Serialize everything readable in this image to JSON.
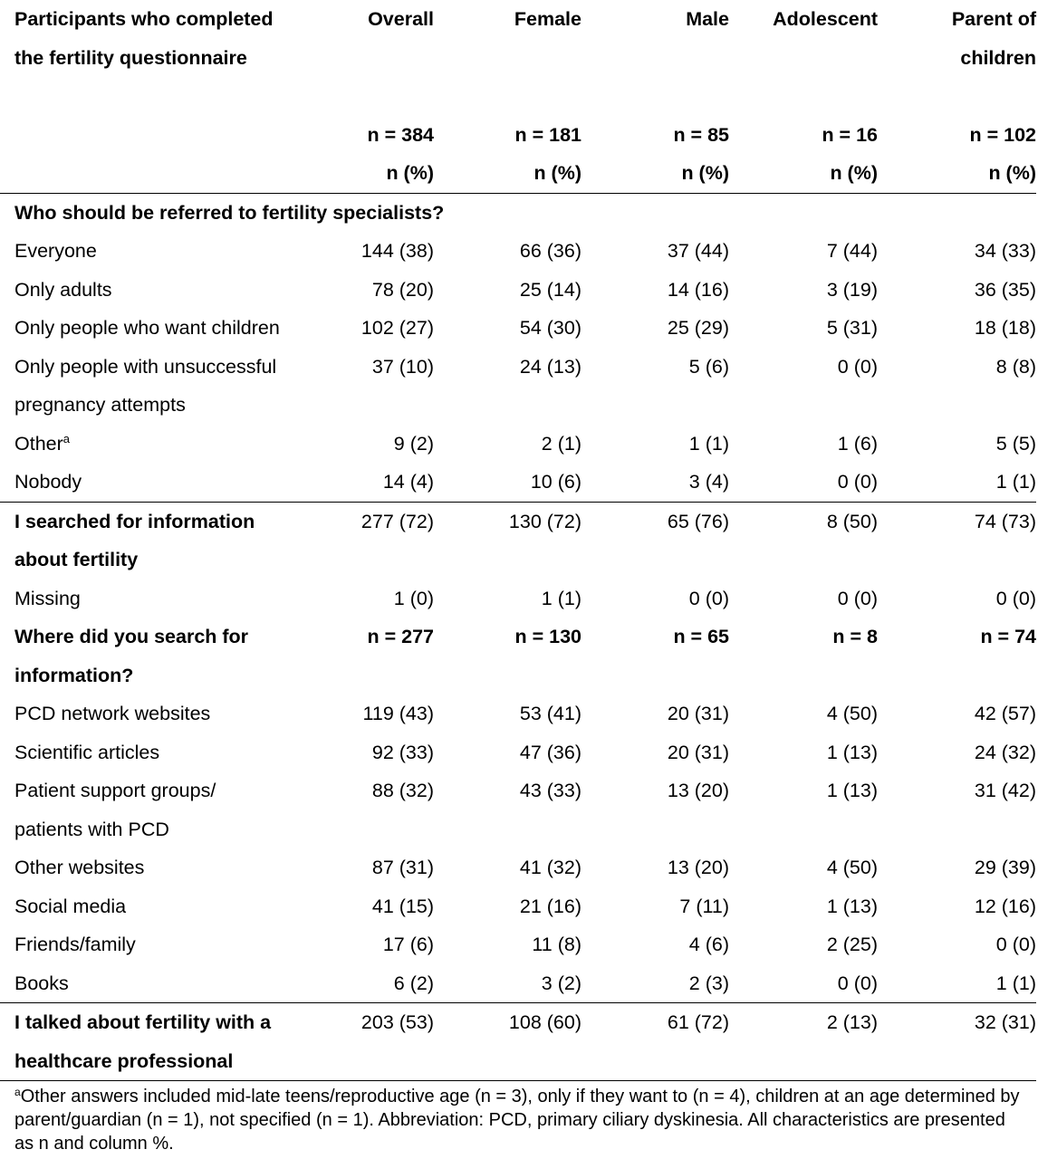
{
  "header": {
    "title_line1": "Participants who completed",
    "title_line2": "the fertility questionnaire",
    "columns": [
      {
        "line1": "Overall",
        "line2": "",
        "n": "n = 384",
        "unit": "n (%)"
      },
      {
        "line1": "Female",
        "line2": "",
        "n": "n = 181",
        "unit": "n (%)"
      },
      {
        "line1": "Male",
        "line2": "",
        "n": "n = 85",
        "unit": "n (%)"
      },
      {
        "line1": "Adolescent",
        "line2": "",
        "n": "n = 16",
        "unit": "n (%)"
      },
      {
        "line1": "Parent of",
        "line2": "children",
        "n": "n = 102",
        "unit": "n (%)"
      }
    ]
  },
  "section1": {
    "title": "Who should be referred to fertility specialists?",
    "rows": [
      {
        "label": "Everyone",
        "values": [
          "144 (38)",
          "66 (36)",
          "37 (44)",
          "7 (44)",
          "34 (33)"
        ]
      },
      {
        "label": "Only adults",
        "values": [
          "78 (20)",
          "25 (14)",
          "14 (16)",
          "3 (19)",
          "36 (35)"
        ]
      },
      {
        "label": "Only people who want children",
        "values": [
          "102 (27)",
          "54 (30)",
          "25 (29)",
          "5 (31)",
          "18 (18)"
        ]
      },
      {
        "label": "Only people with unsuccessful",
        "label2": "pregnancy attempts",
        "values": [
          "37 (10)",
          "24 (13)",
          "5 (6)",
          "0 (0)",
          "8 (8)"
        ]
      },
      {
        "label": "Other",
        "sup": "a",
        "values": [
          "9 (2)",
          "2 (1)",
          "1 (1)",
          "1 (6)",
          "5 (5)"
        ]
      },
      {
        "label": "Nobody",
        "values": [
          "14 (4)",
          "10 (6)",
          "3 (4)",
          "0 (0)",
          "1 (1)"
        ]
      }
    ]
  },
  "section2": {
    "title_line1": "I searched for information",
    "title_line2": "about fertility",
    "values": [
      "277 (72)",
      "130 (72)",
      "65 (76)",
      "8 (50)",
      "74 (73)"
    ],
    "missing": {
      "label": "Missing",
      "values": [
        "1 (0)",
        "1 (1)",
        "0 (0)",
        "0 (0)",
        "0 (0)"
      ]
    }
  },
  "section3": {
    "title_line1": "Where did you search for",
    "title_line2": "information?",
    "n_values": [
      "n = 277",
      "n = 130",
      "n = 65",
      "n = 8",
      "n = 74"
    ],
    "rows": [
      {
        "label": "PCD network websites",
        "values": [
          "119 (43)",
          "53 (41)",
          "20 (31)",
          "4 (50)",
          "42 (57)"
        ]
      },
      {
        "label": "Scientific articles",
        "values": [
          "92 (33)",
          "47 (36)",
          "20 (31)",
          "1 (13)",
          "24 (32)"
        ]
      },
      {
        "label": "Patient support groups/",
        "label2": "patients with PCD",
        "values": [
          "88 (32)",
          "43 (33)",
          "13 (20)",
          "1 (13)",
          "31 (42)"
        ]
      },
      {
        "label": "Other websites",
        "values": [
          "87 (31)",
          "41 (32)",
          "13 (20)",
          "4 (50)",
          "29 (39)"
        ]
      },
      {
        "label": "Social media",
        "values": [
          "41 (15)",
          "21 (16)",
          "7 (11)",
          "1 (13)",
          "12 (16)"
        ]
      },
      {
        "label": "Friends/family",
        "values": [
          "17 (6)",
          "11 (8)",
          "4 (6)",
          "2 (25)",
          "0 (0)"
        ]
      },
      {
        "label": "Books",
        "values": [
          "6 (2)",
          "3 (2)",
          "2 (3)",
          "0 (0)",
          "1 (1)"
        ]
      }
    ]
  },
  "section4": {
    "title_line1": "I talked about fertility with a",
    "title_line2": "healthcare professional",
    "values": [
      "203 (53)",
      "108 (60)",
      "61 (72)",
      "2 (13)",
      "32 (31)"
    ]
  },
  "footnote": {
    "sup": "a",
    "text": "Other answers included mid-late teens/reproductive age (n = 3), only if they want to (n = 4), children at an age determined by parent/guardian (n = 1), not specified (n = 1). Abbreviation: PCD, primary ciliary dyskinesia. All characteristics are presented as n and column %."
  }
}
